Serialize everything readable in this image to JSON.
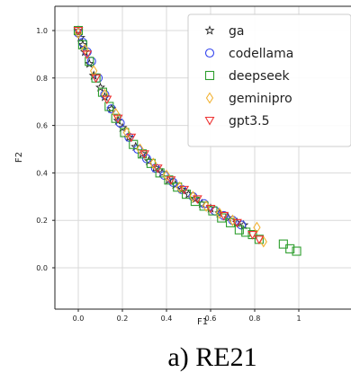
{
  "chart_data": {
    "type": "scatter",
    "title": "",
    "xlabel": "F1",
    "ylabel": "F2",
    "xlim": [
      -0.1,
      1.0
    ],
    "ylim": [
      -0.1,
      1.08
    ],
    "x_ticks": [
      0.0,
      0.2,
      0.4,
      0.6,
      0.8,
      1.0
    ],
    "x_tick_labels": [
      "0.0",
      "0.2",
      "0.4",
      "0.6",
      "0.8",
      "1"
    ],
    "y_ticks": [
      0.0,
      0.2,
      0.4,
      0.6,
      0.8,
      1.0
    ],
    "y_tick_labels": [
      "0.0",
      "0.2",
      "0.4",
      "0.6",
      "0.8",
      "1.0"
    ],
    "grid": true,
    "legend_position": "top-right",
    "series": [
      {
        "name": "ga",
        "marker": "star",
        "color": "#222222",
        "x": [
          0.0,
          0.01,
          0.02,
          0.03,
          0.05,
          0.07,
          0.1,
          0.12,
          0.15,
          0.18,
          0.2,
          0.23,
          0.26,
          0.29,
          0.32,
          0.35,
          0.38,
          0.41,
          0.44,
          0.47,
          0.5,
          0.53,
          0.56,
          0.6,
          0.64,
          0.68,
          0.72,
          0.75
        ],
        "y": [
          1.0,
          0.97,
          0.94,
          0.91,
          0.86,
          0.81,
          0.76,
          0.72,
          0.67,
          0.62,
          0.59,
          0.55,
          0.51,
          0.48,
          0.45,
          0.42,
          0.4,
          0.37,
          0.35,
          0.33,
          0.31,
          0.29,
          0.27,
          0.25,
          0.23,
          0.21,
          0.19,
          0.18
        ]
      },
      {
        "name": "codellama",
        "marker": "circle",
        "color": "#3344ee",
        "x": [
          0.0,
          0.02,
          0.04,
          0.06,
          0.09,
          0.12,
          0.15,
          0.19,
          0.23,
          0.27,
          0.31,
          0.35,
          0.39,
          0.43,
          0.47,
          0.52,
          0.57,
          0.62,
          0.66,
          0.7,
          0.74
        ],
        "y": [
          0.99,
          0.95,
          0.91,
          0.87,
          0.8,
          0.73,
          0.67,
          0.61,
          0.55,
          0.5,
          0.46,
          0.42,
          0.39,
          0.36,
          0.33,
          0.3,
          0.27,
          0.24,
          0.22,
          0.2,
          0.18
        ]
      },
      {
        "name": "deepseek",
        "marker": "square",
        "color": "#2e9e2e",
        "x": [
          0.0,
          0.02,
          0.05,
          0.08,
          0.11,
          0.14,
          0.17,
          0.21,
          0.25,
          0.29,
          0.33,
          0.37,
          0.41,
          0.45,
          0.49,
          0.53,
          0.57,
          0.61,
          0.65,
          0.69,
          0.73,
          0.76,
          0.79,
          0.82,
          0.93,
          0.96,
          0.99
        ],
        "y": [
          1.0,
          0.94,
          0.87,
          0.8,
          0.74,
          0.68,
          0.63,
          0.57,
          0.52,
          0.48,
          0.44,
          0.4,
          0.37,
          0.34,
          0.31,
          0.28,
          0.26,
          0.24,
          0.21,
          0.19,
          0.16,
          0.15,
          0.14,
          0.12,
          0.1,
          0.08,
          0.07
        ]
      },
      {
        "name": "geminipro",
        "marker": "diamond",
        "color": "#f2b233",
        "x": [
          0.0,
          0.03,
          0.07,
          0.12,
          0.17,
          0.22,
          0.28,
          0.34,
          0.4,
          0.46,
          0.52,
          0.58,
          0.64,
          0.7,
          0.81,
          0.84
        ],
        "y": [
          0.99,
          0.92,
          0.83,
          0.73,
          0.65,
          0.57,
          0.5,
          0.44,
          0.39,
          0.34,
          0.3,
          0.26,
          0.23,
          0.2,
          0.17,
          0.11
        ]
      },
      {
        "name": "gpt3.5",
        "marker": "triangle-down",
        "color": "#ee3333",
        "x": [
          0.0,
          0.04,
          0.08,
          0.13,
          0.18,
          0.24,
          0.3,
          0.36,
          0.42,
          0.48,
          0.54,
          0.6,
          0.66,
          0.72,
          0.79,
          0.82
        ],
        "y": [
          1.0,
          0.9,
          0.8,
          0.71,
          0.63,
          0.55,
          0.48,
          0.42,
          0.37,
          0.33,
          0.29,
          0.25,
          0.22,
          0.19,
          0.14,
          0.12
        ]
      }
    ]
  },
  "caption": "a) RE21"
}
